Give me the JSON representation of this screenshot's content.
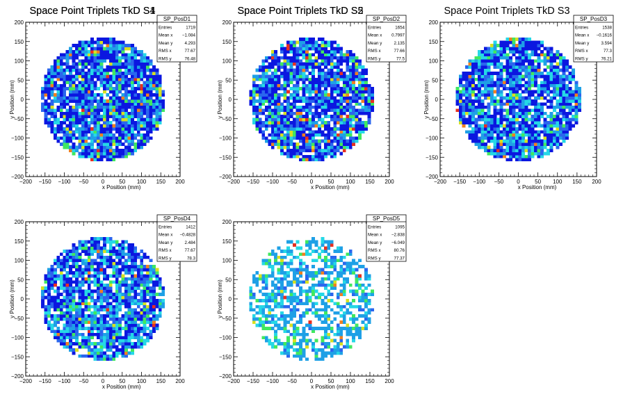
{
  "page": {
    "background": "#ffffff",
    "palette": [
      "#0b17e0",
      "#2a66ee",
      "#1ea0e6",
      "#25d8e6",
      "#40e860",
      "#d8e020",
      "#f08020",
      "#e83020"
    ]
  },
  "chart_data": [
    {
      "type": "heatmap",
      "title": "Space Point Triplets TkD S1",
      "xlabel": "x Position (mm)",
      "ylabel": "y Position (mm)",
      "xlim": [
        -200,
        200
      ],
      "ylim": [
        -200,
        200
      ],
      "xticks": [
        -200,
        -150,
        -100,
        -50,
        0,
        50,
        100,
        150,
        200
      ],
      "yticks": [
        -200,
        -150,
        -100,
        -50,
        0,
        50,
        100,
        150,
        200
      ],
      "grid": false,
      "legend_position": "top-right",
      "stats": {
        "name": "SP_PosD1",
        "rows": [
          {
            "label": "Entries",
            "value": "1719"
          },
          {
            "label": "Mean x",
            "value": "-1.084"
          },
          {
            "label": "Mean y",
            "value": "4.293"
          },
          {
            "label": "RMS x",
            "value": "77.67"
          },
          {
            "label": "RMS y",
            "value": "76.48"
          }
        ]
      },
      "disk": {
        "center": [
          0,
          0
        ],
        "radius": 160
      },
      "bin_width": 8,
      "seed": 11,
      "probs": [
        0.42,
        0.18,
        0.14,
        0.13,
        0.05,
        0.025,
        0.02,
        0.015
      ],
      "empty_fraction": 0.1
    },
    {
      "type": "heatmap",
      "title": "Space Point Triplets TkD S2",
      "xlabel": "x Position (mm)",
      "ylabel": "y Position (mm)",
      "xlim": [
        -200,
        200
      ],
      "ylim": [
        -200,
        200
      ],
      "xticks": [
        -200,
        -150,
        -100,
        -50,
        0,
        50,
        100,
        150,
        200
      ],
      "yticks": [
        -200,
        -150,
        -100,
        -50,
        0,
        50,
        100,
        150,
        200
      ],
      "grid": false,
      "legend_position": "top-right",
      "stats": {
        "name": "SP_PosD2",
        "rows": [
          {
            "label": "Entries",
            "value": "1654"
          },
          {
            "label": "Mean x",
            "value": "0.7997"
          },
          {
            "label": "Mean y",
            "value": "2.135"
          },
          {
            "label": "RMS x",
            "value": "77.66"
          },
          {
            "label": "RMS y",
            "value": "77.5"
          }
        ]
      },
      "disk": {
        "center": [
          0,
          0
        ],
        "radius": 160
      },
      "bin_width": 8,
      "seed": 23,
      "probs": [
        0.44,
        0.16,
        0.14,
        0.13,
        0.06,
        0.03,
        0.02,
        0.02
      ],
      "empty_fraction": 0.12
    },
    {
      "type": "heatmap",
      "title": "Space Point Triplets TkD S3",
      "xlabel": "x Position (mm)",
      "ylabel": "y Position (mm)",
      "xlim": [
        -200,
        200
      ],
      "ylim": [
        -200,
        200
      ],
      "xticks": [
        -200,
        -150,
        -100,
        -50,
        0,
        50,
        100,
        150,
        200
      ],
      "yticks": [
        -200,
        -150,
        -100,
        -50,
        0,
        50,
        100,
        150,
        200
      ],
      "grid": false,
      "legend_position": "top-right",
      "stats": {
        "name": "SP_PosD3",
        "rows": [
          {
            "label": "Entries",
            "value": "1538"
          },
          {
            "label": "Mean x",
            "value": "-0.1616"
          },
          {
            "label": "Mean y",
            "value": "3.594"
          },
          {
            "label": "RMS x",
            "value": "77.3"
          },
          {
            "label": "RMS y",
            "value": "76.21"
          }
        ]
      },
      "disk": {
        "center": [
          0,
          0
        ],
        "radius": 160
      },
      "bin_width": 8,
      "seed": 37,
      "probs": [
        0.43,
        0.12,
        0.18,
        0.17,
        0.06,
        0.02,
        0.015,
        0.005
      ],
      "empty_fraction": 0.14
    },
    {
      "type": "heatmap",
      "title": "Space Point Triplets TkD S4",
      "xlabel": "x Position (mm)",
      "ylabel": "y Position (mm)",
      "xlim": [
        -200,
        200
      ],
      "ylim": [
        -200,
        200
      ],
      "xticks": [
        -200,
        -150,
        -100,
        -50,
        0,
        50,
        100,
        150,
        200
      ],
      "yticks": [
        -200,
        -150,
        -100,
        -50,
        0,
        50,
        100,
        150,
        200
      ],
      "grid": false,
      "legend_position": "top-right",
      "stats": {
        "name": "SP_PosD4",
        "rows": [
          {
            "label": "Entries",
            "value": "1412"
          },
          {
            "label": "Mean x",
            "value": "-0.4828"
          },
          {
            "label": "Mean y",
            "value": "2.484"
          },
          {
            "label": "RMS x",
            "value": "77.67"
          },
          {
            "label": "RMS y",
            "value": "78.3"
          }
        ]
      },
      "disk": {
        "center": [
          0,
          0
        ],
        "radius": 160
      },
      "bin_width": 8,
      "seed": 53,
      "probs": [
        0.36,
        0.18,
        0.2,
        0.16,
        0.06,
        0.025,
        0.01,
        0.005
      ],
      "empty_fraction": 0.16
    },
    {
      "type": "heatmap",
      "title": "Space Point Triplets TkD S5",
      "xlabel": "x Position (mm)",
      "ylabel": "y Position (mm)",
      "xlim": [
        -200,
        200
      ],
      "ylim": [
        -200,
        200
      ],
      "xticks": [
        -200,
        -150,
        -100,
        -50,
        0,
        50,
        100,
        150,
        200
      ],
      "yticks": [
        -200,
        -150,
        -100,
        -50,
        0,
        50,
        100,
        150,
        200
      ],
      "grid": false,
      "legend_position": "top-right",
      "stats": {
        "name": "SP_PosD5",
        "rows": [
          {
            "label": "Entries",
            "value": "1095"
          },
          {
            "label": "Mean x",
            "value": "-2.838"
          },
          {
            "label": "Mean y",
            "value": "-6.049"
          },
          {
            "label": "RMS x",
            "value": "80.76"
          },
          {
            "label": "RMS y",
            "value": "77.37"
          }
        ]
      },
      "disk": {
        "center": [
          0,
          0
        ],
        "radius": 160
      },
      "bin_width": 8,
      "seed": 71,
      "probs": [
        0.0,
        0.12,
        0.55,
        0.18,
        0.1,
        0.03,
        0.01,
        0.01
      ],
      "empty_fraction": 0.42
    }
  ]
}
